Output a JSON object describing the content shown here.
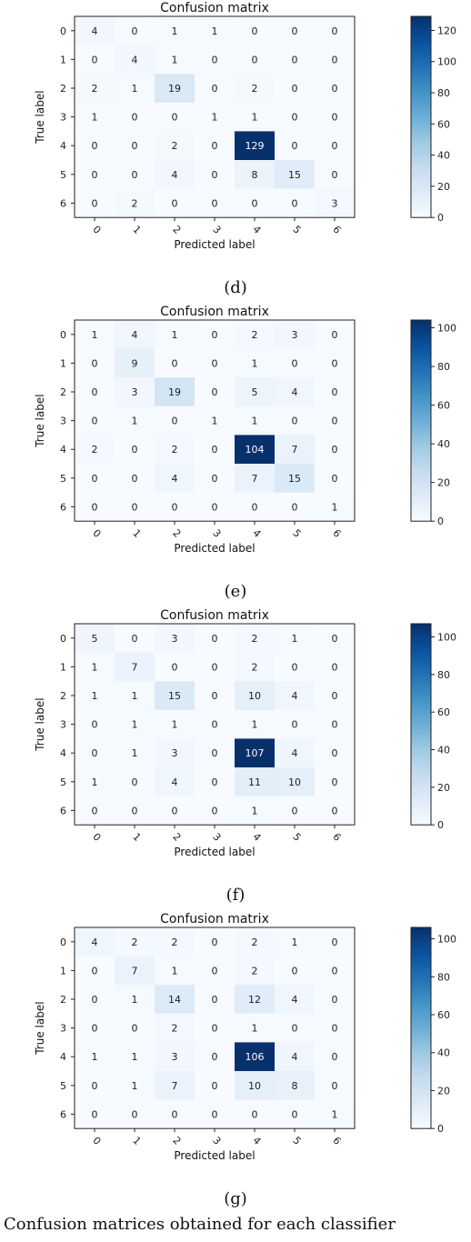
{
  "chart_data": [
    {
      "type": "heatmap",
      "title": "Confusion matrix",
      "caption": "(d)",
      "xlabel": "Predicted label",
      "ylabel": "True label",
      "x_tick_labels": [
        "0",
        "1",
        "2",
        "3",
        "4",
        "5",
        "6"
      ],
      "y_tick_labels": [
        "0",
        "1",
        "2",
        "3",
        "4",
        "5",
        "6"
      ],
      "matrix": [
        [
          4,
          0,
          1,
          1,
          0,
          0,
          0
        ],
        [
          0,
          4,
          1,
          0,
          0,
          0,
          0
        ],
        [
          2,
          1,
          19,
          0,
          2,
          0,
          0
        ],
        [
          1,
          0,
          0,
          1,
          1,
          0,
          0
        ],
        [
          0,
          0,
          2,
          0,
          129,
          0,
          0
        ],
        [
          0,
          0,
          4,
          0,
          8,
          15,
          0
        ],
        [
          0,
          2,
          0,
          0,
          0,
          0,
          3
        ]
      ],
      "colorbar": {
        "range": [
          0,
          129
        ],
        "ticks": [
          0,
          20,
          40,
          60,
          80,
          100,
          120
        ],
        "colormap": "Blues"
      }
    },
    {
      "type": "heatmap",
      "title": "Confusion matrix",
      "caption": "(e)",
      "xlabel": "Predicted label",
      "ylabel": "True label",
      "x_tick_labels": [
        "0",
        "1",
        "2",
        "3",
        "4",
        "5",
        "6"
      ],
      "y_tick_labels": [
        "0",
        "1",
        "2",
        "3",
        "4",
        "5",
        "6"
      ],
      "matrix": [
        [
          1,
          4,
          1,
          0,
          2,
          3,
          0
        ],
        [
          0,
          9,
          0,
          0,
          1,
          0,
          0
        ],
        [
          0,
          3,
          19,
          0,
          5,
          4,
          0
        ],
        [
          0,
          1,
          0,
          1,
          1,
          0,
          0
        ],
        [
          2,
          0,
          2,
          0,
          104,
          7,
          0
        ],
        [
          0,
          0,
          4,
          0,
          7,
          15,
          0
        ],
        [
          0,
          0,
          0,
          0,
          0,
          0,
          1
        ]
      ],
      "colorbar": {
        "range": [
          0,
          104
        ],
        "ticks": [
          0,
          20,
          40,
          60,
          80,
          100
        ],
        "colormap": "Blues"
      }
    },
    {
      "type": "heatmap",
      "title": "Confusion matrix",
      "caption": "(f)",
      "xlabel": "Predicted label",
      "ylabel": "True label",
      "x_tick_labels": [
        "0",
        "1",
        "2",
        "3",
        "4",
        "5",
        "6"
      ],
      "y_tick_labels": [
        "0",
        "1",
        "2",
        "3",
        "4",
        "5",
        "6"
      ],
      "matrix": [
        [
          5,
          0,
          3,
          0,
          2,
          1,
          0
        ],
        [
          1,
          7,
          0,
          0,
          2,
          0,
          0
        ],
        [
          1,
          1,
          15,
          0,
          10,
          4,
          0
        ],
        [
          0,
          1,
          1,
          0,
          1,
          0,
          0
        ],
        [
          0,
          1,
          3,
          0,
          107,
          4,
          0
        ],
        [
          1,
          0,
          4,
          0,
          11,
          10,
          0
        ],
        [
          0,
          0,
          0,
          0,
          1,
          0,
          0
        ]
      ],
      "colorbar": {
        "range": [
          0,
          107
        ],
        "ticks": [
          0,
          20,
          40,
          60,
          80,
          100
        ],
        "colormap": "Blues"
      }
    },
    {
      "type": "heatmap",
      "title": "Confusion matrix",
      "caption": "(g)",
      "xlabel": "Predicted label",
      "ylabel": "True label",
      "x_tick_labels": [
        "0",
        "1",
        "2",
        "3",
        "4",
        "5",
        "6"
      ],
      "y_tick_labels": [
        "0",
        "1",
        "2",
        "3",
        "4",
        "5",
        "6"
      ],
      "matrix": [
        [
          4,
          2,
          2,
          0,
          2,
          1,
          0
        ],
        [
          0,
          7,
          1,
          0,
          2,
          0,
          0
        ],
        [
          0,
          1,
          14,
          0,
          12,
          4,
          0
        ],
        [
          0,
          0,
          2,
          0,
          1,
          0,
          0
        ],
        [
          1,
          1,
          3,
          0,
          106,
          4,
          0
        ],
        [
          0,
          1,
          7,
          0,
          10,
          8,
          0
        ],
        [
          0,
          0,
          0,
          0,
          0,
          0,
          1
        ]
      ],
      "colorbar": {
        "range": [
          0,
          106
        ],
        "ticks": [
          0,
          20,
          40,
          60,
          80,
          100
        ],
        "colormap": "Blues"
      }
    }
  ],
  "footer_text": "Confusion matrices obtained for each classifier"
}
